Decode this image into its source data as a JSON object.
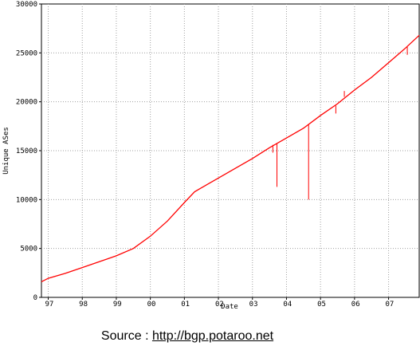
{
  "chart_data": {
    "type": "line",
    "title": "",
    "xlabel": "Date",
    "ylabel": "Unique ASes",
    "x_tick_labels": [
      "97",
      "98",
      "99",
      "00",
      "01",
      "02",
      "03",
      "04",
      "05",
      "06",
      "07"
    ],
    "y_tick_labels": [
      "0",
      "5000",
      "10000",
      "15000",
      "20000",
      "25000",
      "30000"
    ],
    "xlim": [
      1996.8,
      2007.9
    ],
    "ylim": [
      0,
      30000
    ],
    "grid": true,
    "legend": "none",
    "series": [
      {
        "color": "#ff0000",
        "points": [
          [
            1996.8,
            1600
          ],
          [
            1997.0,
            1950
          ],
          [
            1997.5,
            2450
          ],
          [
            1998.0,
            3050
          ],
          [
            1998.5,
            3650
          ],
          [
            1999.0,
            4250
          ],
          [
            1999.5,
            5000
          ],
          [
            2000.0,
            6250
          ],
          [
            2000.5,
            7800
          ],
          [
            2001.0,
            9700
          ],
          [
            2001.3,
            10800
          ],
          [
            2001.7,
            11600
          ],
          [
            2002.0,
            12200
          ],
          [
            2002.5,
            13200
          ],
          [
            2003.0,
            14200
          ],
          [
            2003.5,
            15300
          ],
          [
            2004.0,
            16300
          ],
          [
            2004.5,
            17300
          ],
          [
            2005.0,
            18600
          ],
          [
            2005.5,
            19800
          ],
          [
            2006.0,
            21200
          ],
          [
            2006.5,
            22500
          ],
          [
            2007.0,
            24000
          ],
          [
            2007.5,
            25500
          ],
          [
            2007.9,
            26800
          ]
        ],
        "spikes": [
          {
            "x": 2003.6,
            "from": 15600,
            "to": 14800
          },
          {
            "x": 2003.72,
            "from": 15700,
            "to": 11300
          },
          {
            "x": 2004.65,
            "from": 17700,
            "to": 10000
          },
          {
            "x": 2005.45,
            "from": 19600,
            "to": 18800
          },
          {
            "x": 2005.7,
            "from": 20500,
            "to": 21100
          },
          {
            "x": 2007.55,
            "from": 25600,
            "to": 24800
          }
        ]
      }
    ]
  },
  "source": {
    "prefix": "Source : ",
    "link": "http://bgp.potaroo.net"
  }
}
